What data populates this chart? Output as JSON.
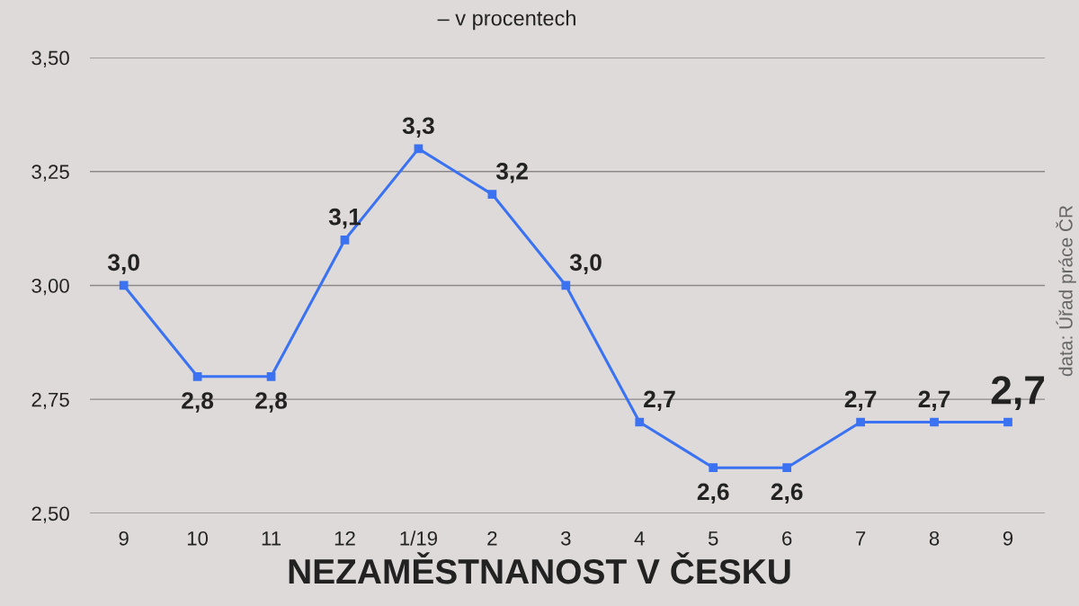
{
  "chart_data": {
    "type": "line",
    "title": "NEZAMĚSTNANOST V ČESKU",
    "subtitle": "– v procentech",
    "categories": [
      "9",
      "10",
      "11",
      "12",
      "1/19",
      "2",
      "3",
      "4",
      "5",
      "6",
      "7",
      "8",
      "9"
    ],
    "series": [
      {
        "color": "#3a72f2",
        "values": [
          3.0,
          2.8,
          2.8,
          3.1,
          3.3,
          3.2,
          3.0,
          2.7,
          2.6,
          2.6,
          2.7,
          2.7,
          2.7
        ],
        "value_labels": [
          "3,0",
          "2,8",
          "2,8",
          "3,1",
          "3,3",
          "3,2",
          "3,0",
          "2,7",
          "2,6",
          "2,6",
          "2,7",
          "2,7",
          "2,7"
        ]
      }
    ],
    "ylim": [
      2.5,
      3.5
    ],
    "yticks": [
      {
        "value": 2.5,
        "label": "2,50"
      },
      {
        "value": 2.75,
        "label": "2,75"
      },
      {
        "value": 3.0,
        "label": "3,00"
      },
      {
        "value": 3.25,
        "label": "3,25"
      },
      {
        "value": 3.5,
        "label": "3,50"
      }
    ],
    "grid": "y",
    "marker": "square",
    "line_style": "solid",
    "annotations": [
      "data: Úřad práce ČR"
    ]
  }
}
